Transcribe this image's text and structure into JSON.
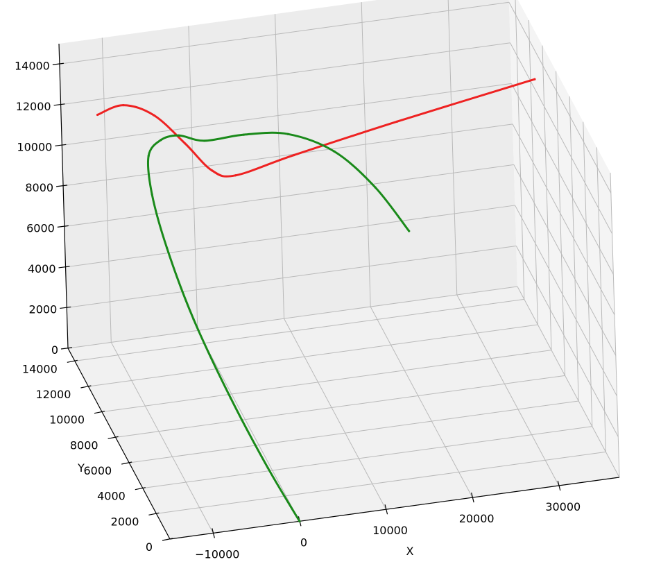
{
  "chart_data": {
    "type": "line",
    "projection": "3d",
    "title": "",
    "xlabel": "X",
    "ylabel": "Y",
    "zlabel": "",
    "xlim": [
      -15000,
      37000
    ],
    "ylim": [
      0,
      15000
    ],
    "zlim": [
      0,
      15000
    ],
    "grid": true,
    "x_ticks": [
      "−10000",
      "0",
      "10000",
      "20000",
      "30000"
    ],
    "y_ticks": [
      "0",
      "2000",
      "4000",
      "6000",
      "8000",
      "10000",
      "12000",
      "14000"
    ],
    "z_ticks": [
      "0",
      "2000",
      "4000",
      "6000",
      "8000",
      "10000",
      "12000",
      "14000"
    ],
    "series": [
      {
        "color": "#ee2222",
        "points": [
          {
            "x": -14500,
            "y": 10000,
            "z": 14600
          },
          {
            "x": -11500,
            "y": 10000,
            "z": 14900
          },
          {
            "x": -8000,
            "y": 10000,
            "z": 14200
          },
          {
            "x": -4500,
            "y": 10000,
            "z": 12600
          },
          {
            "x": -1500,
            "y": 10000,
            "z": 11100
          },
          {
            "x": 1200,
            "y": 10000,
            "z": 10700
          },
          {
            "x": 8000,
            "y": 10000,
            "z": 11300
          },
          {
            "x": 20000,
            "y": 10000,
            "z": 12250
          },
          {
            "x": 36000,
            "y": 10000,
            "z": 13400
          }
        ]
      },
      {
        "color": "#1a8a1a",
        "points": [
          {
            "x": 0,
            "y": 0,
            "z": 0
          },
          {
            "x": -2000,
            "y": 2000,
            "z": 1500
          },
          {
            "x": -4200,
            "y": 4500,
            "z": 3500
          },
          {
            "x": -6200,
            "y": 7200,
            "z": 5800
          },
          {
            "x": -7400,
            "y": 9400,
            "z": 8000
          },
          {
            "x": -7900,
            "y": 10800,
            "z": 9800
          },
          {
            "x": -7500,
            "y": 11700,
            "z": 11100
          },
          {
            "x": -5800,
            "y": 12000,
            "z": 11600
          },
          {
            "x": -3500,
            "y": 12300,
            "z": 11500
          },
          {
            "x": -500,
            "y": 12400,
            "z": 11000
          },
          {
            "x": 4000,
            "y": 12300,
            "z": 11100
          },
          {
            "x": 9000,
            "y": 12200,
            "z": 10900
          },
          {
            "x": 14000,
            "y": 11800,
            "z": 10000
          },
          {
            "x": 18000,
            "y": 11000,
            "z": 8500
          },
          {
            "x": 21000,
            "y": 10000,
            "z": 6800
          }
        ]
      }
    ]
  }
}
